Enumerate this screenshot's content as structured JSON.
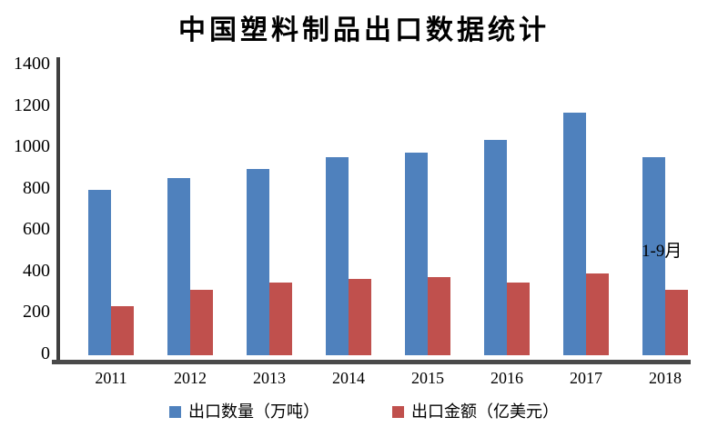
{
  "chart_data": {
    "type": "bar",
    "title": "中国塑料制品出口数据统计",
    "categories": [
      "2011",
      "2012",
      "2013",
      "2014",
      "2015",
      "2016",
      "2017",
      "2018"
    ],
    "series": [
      {
        "name": "出口数量（万吨）",
        "key": "quantity",
        "color": "#4f81bd",
        "values": [
          800,
          855,
          900,
          955,
          977,
          1040,
          1170,
          955
        ]
      },
      {
        "name": "出口金额（亿美元）",
        "key": "value",
        "color": "#c0504d",
        "values": [
          235,
          316,
          352,
          367,
          377,
          353,
          397,
          317
        ]
      }
    ],
    "xlabel": "",
    "ylabel": "",
    "ylim": [
      0,
      1400
    ],
    "yticks": [
      0,
      200,
      400,
      600,
      800,
      1000,
      1200,
      1400
    ],
    "grid": false,
    "legend_position": "bottom",
    "annotation": "1-9月",
    "annotation_target": "2018",
    "axis_color": "#3f3f3f",
    "x_axis_color": "#4a4a4a",
    "background_color": "#ffffff",
    "text_color": "#000000"
  }
}
